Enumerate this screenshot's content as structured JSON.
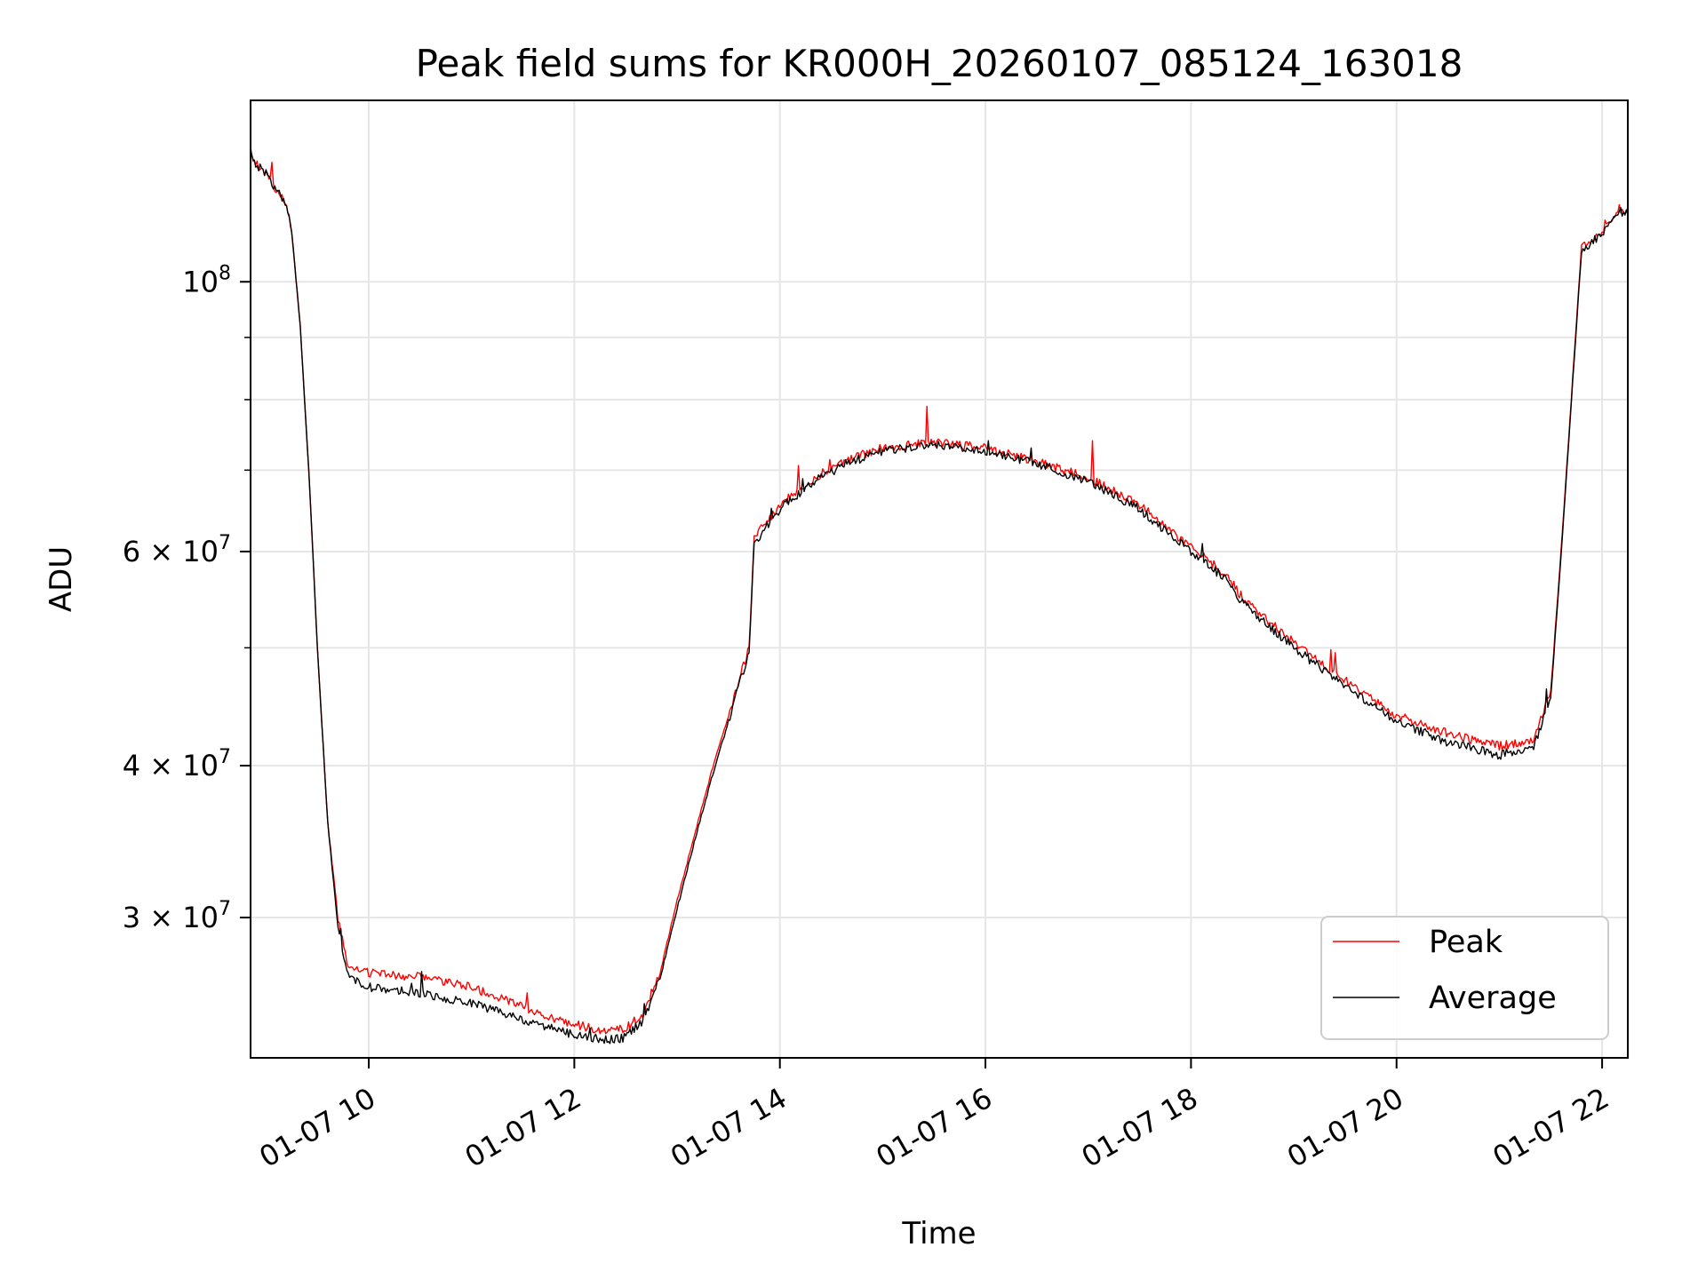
{
  "chart_data": {
    "type": "line",
    "title": "Peak field sums for KR000H_20260107_085124_163018",
    "xlabel": "Time",
    "ylabel": "ADU",
    "x_axis": {
      "kind": "time",
      "range": [
        "2026-01-07 08:51",
        "2026-01-07 22:15"
      ],
      "ticks": [
        {
          "value": "2026-01-07 10:00",
          "label": "01-07 10"
        },
        {
          "value": "2026-01-07 12:00",
          "label": "01-07 12"
        },
        {
          "value": "2026-01-07 14:00",
          "label": "01-07 14"
        },
        {
          "value": "2026-01-07 16:00",
          "label": "01-07 16"
        },
        {
          "value": "2026-01-07 18:00",
          "label": "01-07 18"
        },
        {
          "value": "2026-01-07 20:00",
          "label": "01-07 20"
        },
        {
          "value": "2026-01-07 22:00",
          "label": "01-07 22"
        }
      ]
    },
    "y_axis": {
      "scale": "log",
      "range": [
        23000000,
        141000000
      ],
      "major_ticks": [
        {
          "value": 100000000,
          "label_base": "10",
          "label_exp": "8"
        },
        {
          "value": 60000000,
          "label_base": "6 × 10",
          "label_exp": "7"
        },
        {
          "value": 40000000,
          "label_base": "4 × 10",
          "label_exp": "7"
        },
        {
          "value": 30000000,
          "label_base": "3 × 10",
          "label_exp": "7"
        }
      ],
      "minor_ticks": [
        30000000,
        40000000,
        50000000,
        60000000,
        70000000,
        80000000,
        90000000
      ]
    },
    "grid": true,
    "legend": {
      "placement": "lower-right"
    },
    "series": [
      {
        "name": "Peak",
        "color": "#ff0000",
        "points": [
          [
            "2026-01-07 08:51",
            128000000
          ],
          [
            "2026-01-07 08:54",
            125000000
          ],
          [
            "2026-01-07 09:00",
            123000000
          ],
          [
            "2026-01-07 09:06",
            119000000
          ],
          [
            "2026-01-07 09:12",
            116000000
          ],
          [
            "2026-01-07 09:15",
            110000000
          ],
          [
            "2026-01-07 09:20",
            92000000
          ],
          [
            "2026-01-07 09:25",
            70000000
          ],
          [
            "2026-01-07 09:30",
            50000000
          ],
          [
            "2026-01-07 09:36",
            36000000
          ],
          [
            "2026-01-07 09:42",
            30000000
          ],
          [
            "2026-01-07 09:48",
            27300000
          ],
          [
            "2026-01-07 10:00",
            27000000
          ],
          [
            "2026-01-07 10:30",
            26800000
          ],
          [
            "2026-01-07 11:00",
            26300000
          ],
          [
            "2026-01-07 11:30",
            25300000
          ],
          [
            "2026-01-07 12:00",
            24500000
          ],
          [
            "2026-01-07 12:20",
            24200000
          ],
          [
            "2026-01-07 12:30",
            24300000
          ],
          [
            "2026-01-07 12:40",
            25000000
          ],
          [
            "2026-01-07 12:50",
            27000000
          ],
          [
            "2026-01-07 13:00",
            31000000
          ],
          [
            "2026-01-07 13:10",
            35000000
          ],
          [
            "2026-01-07 13:20",
            39500000
          ],
          [
            "2026-01-07 13:30",
            44000000
          ],
          [
            "2026-01-07 13:38",
            48000000
          ],
          [
            "2026-01-07 13:42",
            50000000
          ],
          [
            "2026-01-07 13:45",
            61500000
          ],
          [
            "2026-01-07 14:00",
            65500000
          ],
          [
            "2026-01-07 14:20",
            69000000
          ],
          [
            "2026-01-07 14:40",
            71500000
          ],
          [
            "2026-01-07 15:00",
            73000000
          ],
          [
            "2026-01-07 15:30",
            73800000
          ],
          [
            "2026-01-07 16:00",
            73000000
          ],
          [
            "2026-01-07 16:30",
            71200000
          ],
          [
            "2026-01-07 17:00",
            69000000
          ],
          [
            "2026-01-07 17:30",
            65500000
          ],
          [
            "2026-01-07 18:00",
            60500000
          ],
          [
            "2026-01-07 18:20",
            57500000
          ],
          [
            "2026-01-07 18:30",
            55000000
          ],
          [
            "2026-01-07 19:00",
            50500000
          ],
          [
            "2026-01-07 19:30",
            47000000
          ],
          [
            "2026-01-07 20:00",
            44000000
          ],
          [
            "2026-01-07 20:30",
            42500000
          ],
          [
            "2026-01-07 21:00",
            41500000
          ],
          [
            "2026-01-07 21:20",
            42000000
          ],
          [
            "2026-01-07 21:30",
            46000000
          ],
          [
            "2026-01-07 21:36",
            60000000
          ],
          [
            "2026-01-07 21:42",
            80000000
          ],
          [
            "2026-01-07 21:48",
            107000000
          ],
          [
            "2026-01-07 22:00",
            110000000
          ],
          [
            "2026-01-07 22:10",
            115000000
          ],
          [
            "2026-01-07 22:15",
            114000000
          ]
        ]
      },
      {
        "name": "Average",
        "color": "#000000",
        "points": [
          [
            "2026-01-07 08:51",
            128000000
          ],
          [
            "2026-01-07 08:54",
            125000000
          ],
          [
            "2026-01-07 09:00",
            123000000
          ],
          [
            "2026-01-07 09:06",
            119000000
          ],
          [
            "2026-01-07 09:12",
            116000000
          ],
          [
            "2026-01-07 09:15",
            110000000
          ],
          [
            "2026-01-07 09:20",
            92000000
          ],
          [
            "2026-01-07 09:25",
            70000000
          ],
          [
            "2026-01-07 09:30",
            50000000
          ],
          [
            "2026-01-07 09:36",
            36000000
          ],
          [
            "2026-01-07 09:42",
            29500000
          ],
          [
            "2026-01-07 09:48",
            26800000
          ],
          [
            "2026-01-07 10:00",
            26300000
          ],
          [
            "2026-01-07 10:30",
            26000000
          ],
          [
            "2026-01-07 11:00",
            25500000
          ],
          [
            "2026-01-07 11:30",
            24700000
          ],
          [
            "2026-01-07 12:00",
            24000000
          ],
          [
            "2026-01-07 12:20",
            23800000
          ],
          [
            "2026-01-07 12:30",
            23900000
          ],
          [
            "2026-01-07 12:40",
            24700000
          ],
          [
            "2026-01-07 12:50",
            26700000
          ],
          [
            "2026-01-07 13:00",
            30500000
          ],
          [
            "2026-01-07 13:10",
            34600000
          ],
          [
            "2026-01-07 13:20",
            39000000
          ],
          [
            "2026-01-07 13:30",
            43500000
          ],
          [
            "2026-01-07 13:38",
            47500000
          ],
          [
            "2026-01-07 13:42",
            49500000
          ],
          [
            "2026-01-07 13:45",
            61000000
          ],
          [
            "2026-01-07 14:00",
            65000000
          ],
          [
            "2026-01-07 14:20",
            68600000
          ],
          [
            "2026-01-07 14:40",
            71000000
          ],
          [
            "2026-01-07 15:00",
            72600000
          ],
          [
            "2026-01-07 15:30",
            73400000
          ],
          [
            "2026-01-07 16:00",
            72600000
          ],
          [
            "2026-01-07 16:30",
            70800000
          ],
          [
            "2026-01-07 17:00",
            68600000
          ],
          [
            "2026-01-07 17:30",
            65000000
          ],
          [
            "2026-01-07 18:00",
            60000000
          ],
          [
            "2026-01-07 18:20",
            57000000
          ],
          [
            "2026-01-07 18:30",
            54500000
          ],
          [
            "2026-01-07 19:00",
            50000000
          ],
          [
            "2026-01-07 19:30",
            46500000
          ],
          [
            "2026-01-07 20:00",
            43500000
          ],
          [
            "2026-01-07 20:30",
            41800000
          ],
          [
            "2026-01-07 21:00",
            40800000
          ],
          [
            "2026-01-07 21:20",
            41500000
          ],
          [
            "2026-01-07 21:30",
            45500000
          ],
          [
            "2026-01-07 21:36",
            59500000
          ],
          [
            "2026-01-07 21:42",
            79500000
          ],
          [
            "2026-01-07 21:48",
            106000000
          ],
          [
            "2026-01-07 22:00",
            109500000
          ],
          [
            "2026-01-07 22:10",
            114500000
          ],
          [
            "2026-01-07 22:15",
            113500000
          ]
        ]
      }
    ]
  }
}
